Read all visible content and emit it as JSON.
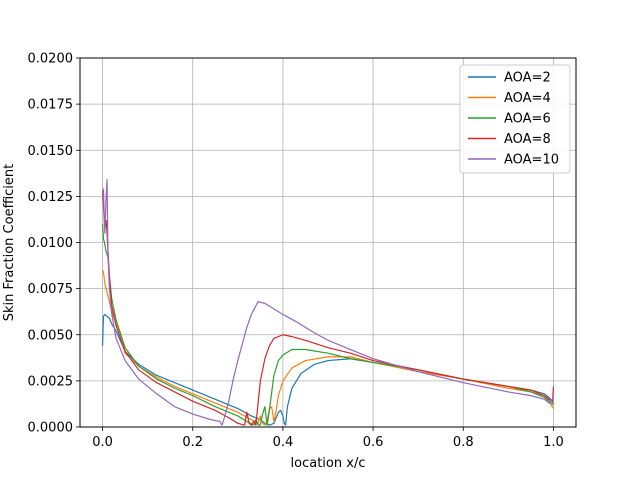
{
  "chart_data": {
    "type": "line",
    "title": "",
    "xlabel": "location x/c",
    "ylabel": "Skin Fraction Coefficient",
    "xlim": [
      -0.05,
      1.05
    ],
    "ylim": [
      0.0,
      0.02
    ],
    "grid": true,
    "legend_position": "top-right",
    "x_ticks": [
      0.0,
      0.2,
      0.4,
      0.6,
      0.8,
      1.0
    ],
    "x_tick_labels": [
      "0.0",
      "0.2",
      "0.4",
      "0.6",
      "0.8",
      "1.0"
    ],
    "y_ticks": [
      0.0,
      0.0025,
      0.005,
      0.0075,
      0.01,
      0.0125,
      0.015,
      0.0175,
      0.02
    ],
    "y_tick_labels": [
      "0.0000",
      "0.0025",
      "0.0050",
      "0.0075",
      "0.0100",
      "0.0125",
      "0.0150",
      "0.0175",
      "0.0200"
    ],
    "series": [
      {
        "name": "AOA=2",
        "color": "#1f77b4",
        "x": [
          0.0,
          0.002,
          0.005,
          0.01,
          0.015,
          0.02,
          0.03,
          0.05,
          0.08,
          0.12,
          0.16,
          0.2,
          0.25,
          0.3,
          0.33,
          0.35,
          0.36,
          0.37,
          0.38,
          0.385,
          0.39,
          0.395,
          0.4,
          0.403,
          0.406,
          0.41,
          0.42,
          0.44,
          0.47,
          0.5,
          0.55,
          0.6,
          0.7,
          0.8,
          0.9,
          0.95,
          0.98,
          0.99,
          1.0
        ],
        "y": [
          0.0044,
          0.006,
          0.0061,
          0.006,
          0.0059,
          0.0056,
          0.0052,
          0.0041,
          0.0034,
          0.0028,
          0.0024,
          0.002,
          0.0015,
          0.001,
          0.0006,
          0.0004,
          0.0002,
          0.0001,
          0.0002,
          0.0005,
          0.0008,
          0.0009,
          0.0006,
          0.0002,
          0.0001,
          0.0011,
          0.0021,
          0.0029,
          0.0034,
          0.0036,
          0.0037,
          0.0035,
          0.0031,
          0.0026,
          0.0022,
          0.002,
          0.0018,
          0.0016,
          0.0013
        ]
      },
      {
        "name": "AOA=4",
        "color": "#ff7f0e",
        "x": [
          0.0,
          0.002,
          0.005,
          0.01,
          0.015,
          0.02,
          0.03,
          0.05,
          0.08,
          0.12,
          0.16,
          0.2,
          0.25,
          0.3,
          0.33,
          0.345,
          0.35,
          0.355,
          0.36,
          0.365,
          0.37,
          0.375,
          0.38,
          0.385,
          0.39,
          0.4,
          0.42,
          0.45,
          0.5,
          0.55,
          0.6,
          0.7,
          0.8,
          0.9,
          0.95,
          0.98,
          0.99,
          1.0
        ],
        "y": [
          0.0085,
          0.0084,
          0.0078,
          0.0073,
          0.0068,
          0.0063,
          0.0056,
          0.004,
          0.0033,
          0.0027,
          0.0022,
          0.0018,
          0.0013,
          0.0008,
          0.0004,
          0.0002,
          0.0006,
          0.0002,
          0.0001,
          0.0003,
          0.001,
          0.0011,
          0.0003,
          0.0009,
          0.0017,
          0.0025,
          0.0032,
          0.0036,
          0.0038,
          0.0038,
          0.0035,
          0.003,
          0.0026,
          0.0021,
          0.0019,
          0.0017,
          0.0014,
          0.001
        ]
      },
      {
        "name": "AOA=6",
        "color": "#2ca02c",
        "x": [
          0.0,
          0.002,
          0.005,
          0.008,
          0.012,
          0.015,
          0.02,
          0.03,
          0.05,
          0.08,
          0.12,
          0.16,
          0.2,
          0.25,
          0.3,
          0.32,
          0.335,
          0.34,
          0.345,
          0.35,
          0.355,
          0.36,
          0.365,
          0.37,
          0.38,
          0.39,
          0.4,
          0.42,
          0.45,
          0.5,
          0.55,
          0.6,
          0.7,
          0.8,
          0.9,
          0.95,
          0.98,
          0.99,
          1.0
        ],
        "y": [
          0.011,
          0.0102,
          0.0099,
          0.0095,
          0.0092,
          0.0083,
          0.007,
          0.0058,
          0.0043,
          0.0033,
          0.0026,
          0.0021,
          0.0017,
          0.0011,
          0.0006,
          0.0003,
          0.0001,
          0.0004,
          0.0001,
          0.0001,
          0.0007,
          0.0011,
          0.0001,
          0.0009,
          0.0028,
          0.0036,
          0.0039,
          0.0042,
          0.0042,
          0.004,
          0.0037,
          0.0035,
          0.0031,
          0.0026,
          0.0022,
          0.0019,
          0.0016,
          0.0014,
          0.0012
        ]
      },
      {
        "name": "AOA=8",
        "color": "#d62728",
        "x": [
          0.0,
          0.002,
          0.005,
          0.008,
          0.01,
          0.012,
          0.015,
          0.02,
          0.03,
          0.05,
          0.08,
          0.12,
          0.16,
          0.2,
          0.25,
          0.28,
          0.3,
          0.315,
          0.32,
          0.325,
          0.33,
          0.335,
          0.34,
          0.345,
          0.35,
          0.36,
          0.37,
          0.38,
          0.4,
          0.42,
          0.45,
          0.5,
          0.55,
          0.6,
          0.7,
          0.8,
          0.9,
          0.95,
          0.98,
          0.99,
          0.998,
          1.0
        ],
        "y": [
          0.0128,
          0.012,
          0.0107,
          0.0112,
          0.0105,
          0.0096,
          0.0082,
          0.0066,
          0.0055,
          0.0041,
          0.0031,
          0.0024,
          0.0019,
          0.0014,
          0.0009,
          0.0005,
          0.0002,
          0.0001,
          0.0008,
          0.0002,
          0.0001,
          0.0003,
          0.0001,
          0.0013,
          0.0025,
          0.0037,
          0.0044,
          0.0048,
          0.005,
          0.0049,
          0.0047,
          0.0043,
          0.004,
          0.0036,
          0.0031,
          0.0026,
          0.0022,
          0.002,
          0.0017,
          0.0015,
          0.0014,
          0.0022
        ]
      },
      {
        "name": "AOA=10",
        "color": "#9467bd",
        "x": [
          0.0,
          0.002,
          0.005,
          0.008,
          0.01,
          0.012,
          0.015,
          0.02,
          0.03,
          0.05,
          0.08,
          0.12,
          0.16,
          0.2,
          0.24,
          0.26,
          0.265,
          0.27,
          0.28,
          0.29,
          0.3,
          0.31,
          0.32,
          0.33,
          0.345,
          0.36,
          0.38,
          0.4,
          0.43,
          0.47,
          0.5,
          0.55,
          0.6,
          0.7,
          0.8,
          0.9,
          0.95,
          0.98,
          0.99,
          1.0
        ],
        "y": [
          0.0125,
          0.0129,
          0.0105,
          0.0125,
          0.0134,
          0.0094,
          0.0076,
          0.0062,
          0.0048,
          0.0036,
          0.0026,
          0.0018,
          0.0011,
          0.0007,
          0.0004,
          0.0003,
          0.0001,
          0.0005,
          0.0014,
          0.0026,
          0.0036,
          0.0045,
          0.0054,
          0.0061,
          0.0068,
          0.0067,
          0.0064,
          0.0061,
          0.0057,
          0.0051,
          0.0047,
          0.0042,
          0.0037,
          0.003,
          0.0024,
          0.0019,
          0.0017,
          0.0015,
          0.0013,
          0.0016
        ]
      }
    ]
  }
}
